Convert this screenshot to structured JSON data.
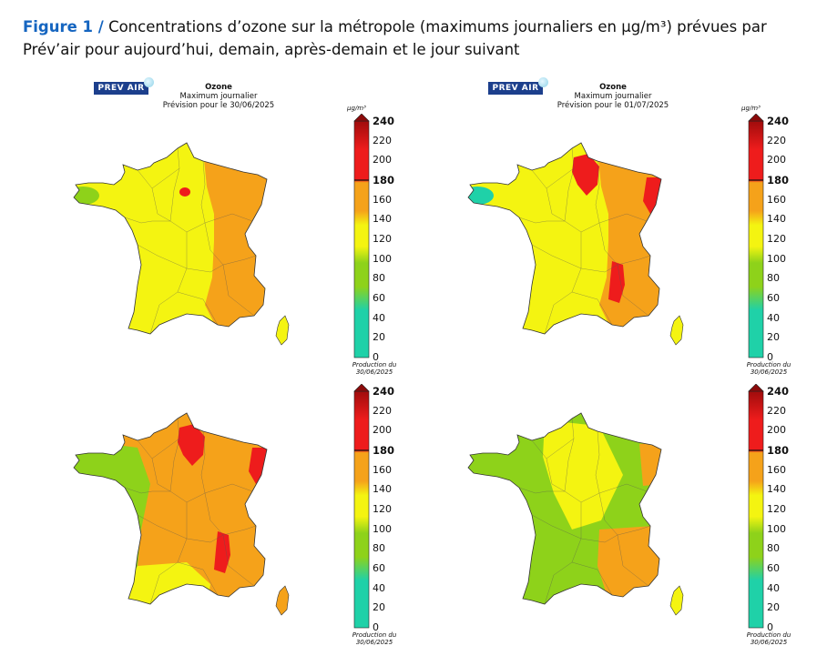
{
  "caption": {
    "label": "Figure 1 /",
    "text": "Concentrations d’ozone sur la métropole (maximums journaliers en µg/m³) prévues par Prév’air pour aujourd’hui, demain, après-demain et le jour suivant"
  },
  "colors": {
    "teal": "#1fd1a8",
    "green": "#8ed21a",
    "yellow": "#f4f411",
    "orange": "#f5a21a",
    "red": "#ee1c1c",
    "darkred": "#8b0a0a"
  },
  "colorbar": {
    "unit": "µg/m³",
    "ticks": [
      "240",
      "220",
      "200",
      "180",
      "160",
      "140",
      "120",
      "100",
      "80",
      "60",
      "40",
      "20",
      "0"
    ],
    "bold_ticks": [
      "240",
      "180"
    ]
  },
  "panels": [
    {
      "logo": "PREV AIR",
      "title": "Ozone",
      "subtitle": "Maximum journalier",
      "forecast": "Prévision pour le 30/06/2025",
      "production": "Production du 30/06/2025",
      "base_level": "yellow",
      "zones": [
        {
          "name": "east-orange",
          "level": "orange"
        },
        {
          "name": "brittany-tip",
          "level": "green"
        },
        {
          "name": "paris-hotspot",
          "level": "red"
        }
      ]
    },
    {
      "logo": "PREV AIR",
      "title": "Ozone",
      "subtitle": "Maximum journalier",
      "forecast": "Prévision pour le 01/07/2025",
      "production": "Production du 30/06/2025",
      "base_level": "yellow",
      "zones": [
        {
          "name": "east-orange",
          "level": "orange"
        },
        {
          "name": "north-red",
          "level": "red"
        },
        {
          "name": "alsace-red",
          "level": "red"
        },
        {
          "name": "rhone-red",
          "level": "red"
        },
        {
          "name": "brittany-tip",
          "level": "teal"
        }
      ]
    },
    {
      "logo": "",
      "title": "",
      "subtitle": "",
      "forecast": "",
      "production": "Production du 30/06/2025",
      "base_level": "orange",
      "zones": [
        {
          "name": "west-green",
          "level": "green"
        },
        {
          "name": "south-yellow",
          "level": "yellow"
        },
        {
          "name": "north-red",
          "level": "red"
        },
        {
          "name": "alsace-red",
          "level": "red"
        },
        {
          "name": "rhone-red",
          "level": "red"
        }
      ]
    },
    {
      "logo": "",
      "title": "",
      "subtitle": "",
      "forecast": "",
      "production": "Production du 30/06/2025",
      "base_level": "green",
      "zones": [
        {
          "name": "center-yellow",
          "level": "yellow"
        },
        {
          "name": "alsace-orange",
          "level": "orange"
        },
        {
          "name": "southeast-orange",
          "level": "orange"
        }
      ]
    }
  ]
}
